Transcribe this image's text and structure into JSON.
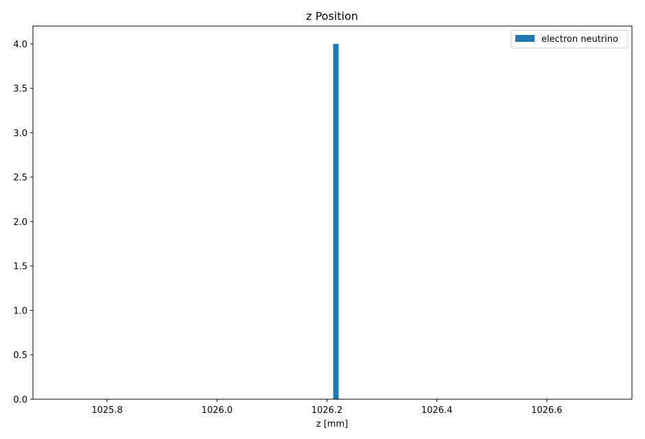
{
  "chart_data": {
    "type": "bar",
    "title": "z Position",
    "xlabel": "z [mm]",
    "ylabel": "",
    "xlim": [
      1025.665,
      1026.755
    ],
    "ylim": [
      0,
      4.2
    ],
    "x_ticks": [
      "1025.8",
      "1026.0",
      "1026.2",
      "1026.4",
      "1026.6"
    ],
    "x_tick_values": [
      1025.8,
      1026.0,
      1026.2,
      1026.4,
      1026.6
    ],
    "y_ticks": [
      "0.0",
      "0.5",
      "1.0",
      "1.5",
      "2.0",
      "2.5",
      "3.0",
      "3.5",
      "4.0"
    ],
    "y_tick_values": [
      0,
      0.5,
      1.0,
      1.5,
      2.0,
      2.5,
      3.0,
      3.5,
      4.0
    ],
    "grid": false,
    "legend_position": "top-right",
    "series": [
      {
        "name": "electron neutrino",
        "color": "#1f77b4",
        "bins": [
          {
            "x_start": 1026.2113,
            "x_end": 1026.2212,
            "value": 4
          }
        ]
      }
    ]
  }
}
